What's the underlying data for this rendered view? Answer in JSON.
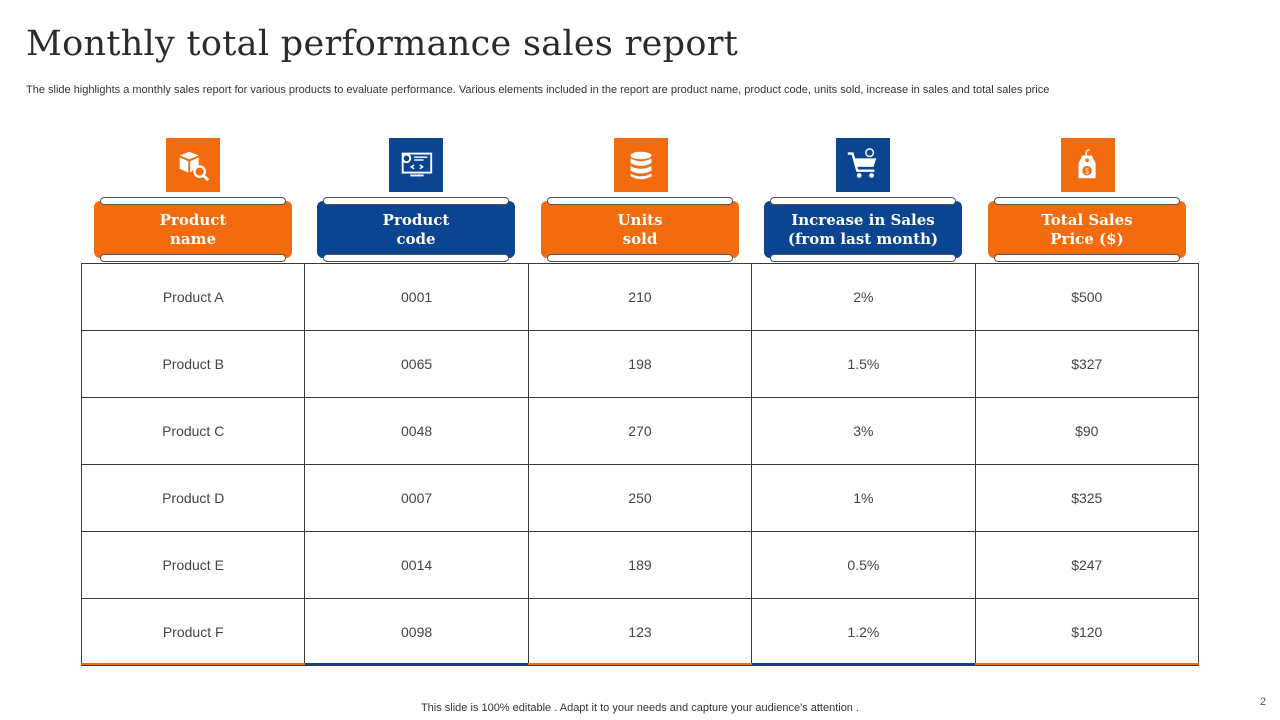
{
  "slide": {
    "title": "Monthly total performance sales report",
    "subtitle": "The slide highlights a monthly sales report for various products to evaluate performance. Various elements included in the report are product name, product code, units sold, increase in sales and total sales price",
    "footer": "This slide is 100% editable . Adapt it to your needs and capture your audience's attention .",
    "page_number": "2"
  },
  "colors": {
    "orange": "#F26B0F",
    "blue": "#0B4592"
  },
  "columns": [
    {
      "label": "Product\nname",
      "icon": "box-search-icon",
      "color": "orange"
    },
    {
      "label": "Product\ncode",
      "icon": "code-monitor-icon",
      "color": "blue"
    },
    {
      "label": "Units\nsold",
      "icon": "coins-stack-icon",
      "color": "orange"
    },
    {
      "label": "Increase in Sales\n(from last month)",
      "icon": "shopping-cart-icon",
      "color": "blue"
    },
    {
      "label": "Total Sales\nPrice ($)",
      "icon": "price-tag-icon",
      "color": "orange"
    }
  ],
  "rows": [
    [
      "Product A",
      "0001",
      "210",
      "2%",
      "$500"
    ],
    [
      "Product B",
      "0065",
      "198",
      "1.5%",
      "$327"
    ],
    [
      "Product C",
      "0048",
      "270",
      "3%",
      "$90"
    ],
    [
      "Product D",
      "0007",
      "250",
      "1%",
      "$325"
    ],
    [
      "Product E",
      "0014",
      "189",
      "0.5%",
      "$247"
    ],
    [
      "Product F",
      "0098",
      "123",
      "1.2%",
      "$120"
    ]
  ]
}
